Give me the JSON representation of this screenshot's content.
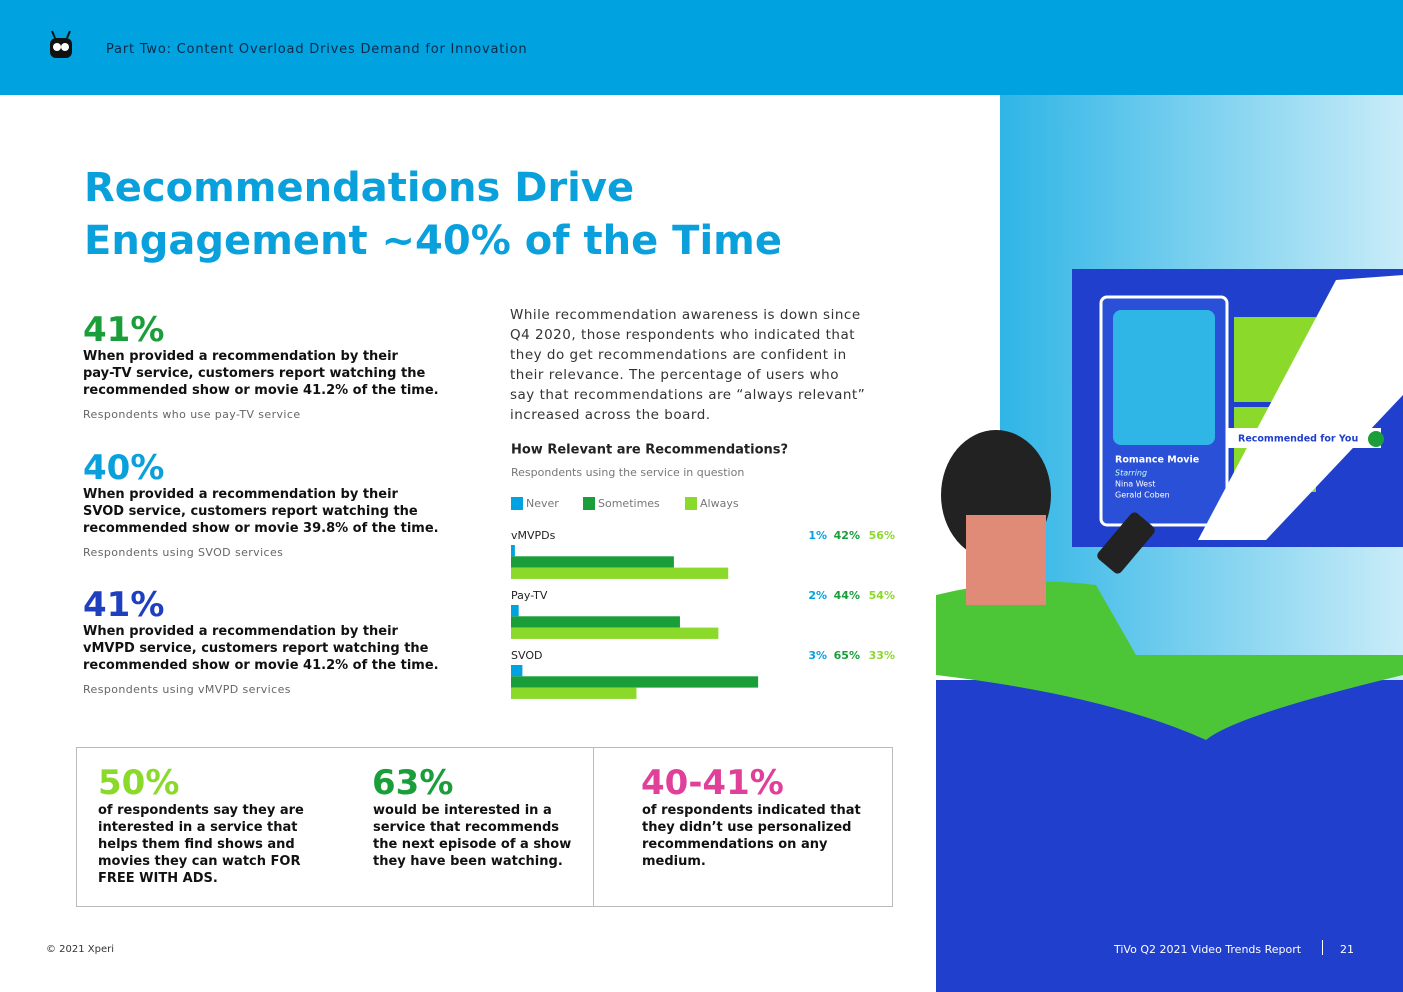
{
  "header": {
    "title": "Part Two: Content Overload Drives Demand for Innovation"
  },
  "title": [
    "Recommendations Drive",
    "Engagement ~40% of the Time"
  ],
  "stats": [
    {
      "value": "41%",
      "text": [
        "When provided a recommendation by their",
        "pay-TV service, customers report watching the",
        "recommended show or movie 41.2% of the time."
      ],
      "note": "Respondents who use pay-TV service"
    },
    {
      "value": "40%",
      "text": [
        "When provided a recommendation by their",
        "SVOD service, customers report watching the",
        "recommended show or movie 39.8% of the time."
      ],
      "note": "Respondents using SVOD services"
    },
    {
      "value": "41%",
      "text": [
        "When provided a recommendation by their",
        "vMVPD service, customers report watching the",
        "recommended show or movie 41.2% of the time."
      ],
      "note": "Respondents using vMVPD services"
    }
  ],
  "intro": [
    "While recommendation awareness is down since",
    "Q4 2020, those respondents who indicated that",
    "they do get recommendations are confident in",
    "their relevance. The percentage of users who",
    "say that recommendations are “always relevant”",
    "increased across the board."
  ],
  "chart_data": {
    "type": "bar",
    "title": "How Relevant are Recommendations?",
    "subtitle": "Respondents using the service in question",
    "categories": [
      "vMVPDs",
      "Pay-TV",
      "SVOD"
    ],
    "series": [
      {
        "name": "Never",
        "color": "#00a3e0",
        "values": [
          1,
          2,
          3
        ],
        "value_labels": [
          "1%",
          "2%",
          "3%"
        ]
      },
      {
        "name": "Sometimes",
        "color": "#1a9e3a",
        "values": [
          42,
          44,
          65
        ],
        "value_labels": [
          "42%",
          "44%",
          "65%"
        ]
      },
      {
        "name": "Always",
        "color": "#8bd92a",
        "values": [
          56,
          54,
          33
        ],
        "value_labels": [
          "56%",
          "54%",
          "33%"
        ]
      }
    ]
  },
  "callouts": [
    {
      "value": "50%",
      "text": [
        "of respondents say they are",
        "interested in a service that",
        "helps them find shows and",
        "movies they can watch FOR",
        "FREE WITH ADS."
      ]
    },
    {
      "value": "63%",
      "text": [
        "would be interested in a",
        "service that recommends",
        "the next episode of a show",
        "they have been watching."
      ]
    },
    {
      "value": "40-41%",
      "text": [
        "of respondents indicated that",
        "they didn’t use personalized",
        "recommendations on any",
        "medium."
      ]
    }
  ],
  "illustration": {
    "movie": "Romance Movie",
    "starring": "Starring",
    "actors": [
      "Nina West",
      "Gerald Coben"
    ],
    "button": "Recommended for You"
  },
  "footer": {
    "copyright": "© 2021 Xperi",
    "report": "TiVo Q2 2021 Video Trends Report",
    "page": "21"
  }
}
